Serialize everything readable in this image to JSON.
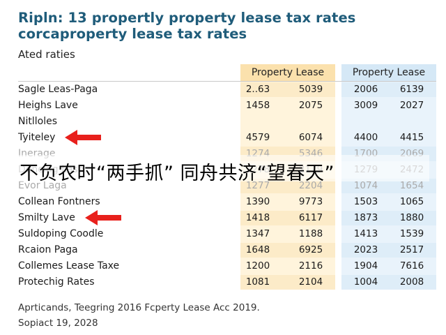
{
  "title": {
    "line1": "Ripln: 13 propertly property lease tax rates",
    "line2": "corcaproperty lease tax rates"
  },
  "subhead": "Ated raties",
  "columns": {
    "a": "Property Lease",
    "b": "Property Lease"
  },
  "rows": [
    {
      "label": "Sagle Leas-Paga",
      "values": [
        "2..63",
        "5039",
        "2006",
        "6139"
      ],
      "faded": false,
      "arrow": false
    },
    {
      "label": "Heighs Lave",
      "values": [
        "1458",
        "2075",
        "3009",
        "2027"
      ],
      "faded": false,
      "arrow": false
    },
    {
      "label": "Nitlloles",
      "values": [
        "",
        "",
        "",
        ""
      ],
      "faded": false,
      "arrow": false
    },
    {
      "label": "Tyiteley",
      "values": [
        "4579",
        "6074",
        "4400",
        "4415"
      ],
      "faded": false,
      "arrow": true
    },
    {
      "label": "Inerage",
      "values": [
        "1274",
        "5346",
        "1700",
        "2069"
      ],
      "faded": true,
      "arrow": false
    },
    {
      "label": "Dencing Lase",
      "values": [
        "1278",
        "2179",
        "1279",
        "2472"
      ],
      "faded": true,
      "arrow": false
    },
    {
      "label": "Evor Laga",
      "values": [
        "1277",
        "2204",
        "1074",
        "1654"
      ],
      "faded": true,
      "arrow": false
    },
    {
      "label": "Collean Fontners",
      "values": [
        "1390",
        "9773",
        "1503",
        "1065"
      ],
      "faded": false,
      "arrow": false
    },
    {
      "label": "Smilty Lave",
      "values": [
        "1418",
        "6117",
        "1873",
        "1880"
      ],
      "faded": false,
      "arrow": true
    },
    {
      "label": "Suldoping Coodle",
      "values": [
        "1347",
        "1188",
        "1413",
        "1539"
      ],
      "faded": false,
      "arrow": false
    },
    {
      "label": "Rcaion Paga",
      "values": [
        "1648",
        "6925",
        "2023",
        "2517"
      ],
      "faded": false,
      "arrow": false
    },
    {
      "label": "Collemes Lease Taxe",
      "values": [
        "1200",
        "2116",
        "1904",
        "7616"
      ],
      "faded": false,
      "arrow": false
    },
    {
      "label": "Protechig Rates",
      "values": [
        "1081",
        "2104",
        "1004",
        "2008"
      ],
      "faded": false,
      "arrow": false
    }
  ],
  "overlay_text": "不负农时“两手抓” 同舟共济“望春天”",
  "footer": {
    "line1": "Aprticands, Teegring 2016 Fcperty Lease Acc 2019.",
    "line2": "Sopiact 19, 2028"
  },
  "colors": {
    "title": "#1f5c7a",
    "col_a_header": "#fbe1ad",
    "col_a_body": "#fff4dc",
    "col_b_header": "#d5e8f6",
    "col_b_body": "#e9f3fb",
    "arrow": "#e8201c"
  },
  "icons": {
    "arrow": "red-arrow-left-icon"
  }
}
